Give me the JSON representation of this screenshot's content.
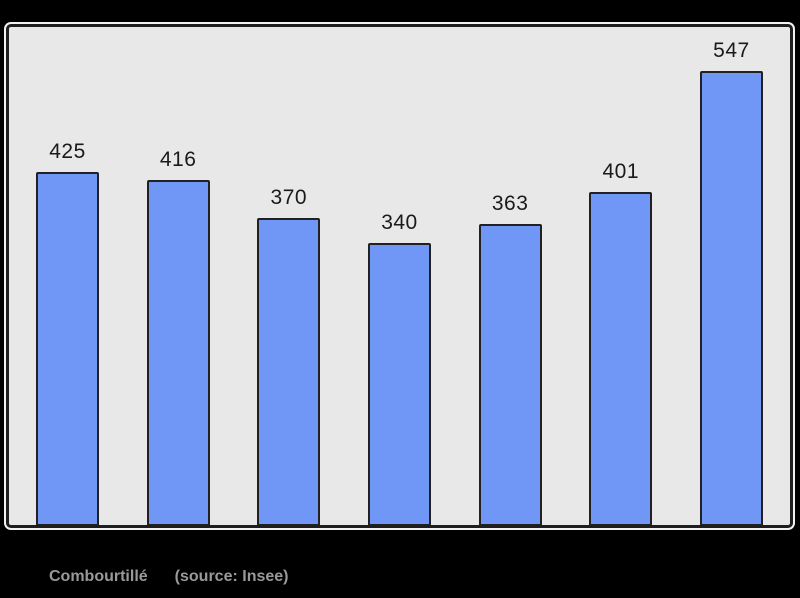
{
  "page": {
    "background_color": "#000000"
  },
  "chart_data": {
    "type": "bar",
    "values": [
      425,
      416,
      370,
      340,
      363,
      401,
      547
    ],
    "value_labels": [
      "425",
      "416",
      "370",
      "340",
      "363",
      "401",
      "547"
    ],
    "title": "",
    "xlabel": "",
    "ylabel": "",
    "ylim": [
      0,
      600
    ],
    "grid": false,
    "legend": false,
    "axis_tick_labels_visible": false,
    "bar_color": "#7197f6",
    "bar_border_color": "#212121",
    "plot_background_color": "#e8e8e8",
    "frame_border_color": "#1e1e1e",
    "label_color": "#1a1a1a"
  },
  "caption": {
    "title": "Combourtillé",
    "source": "(source: Insee)",
    "color": "#999999"
  }
}
